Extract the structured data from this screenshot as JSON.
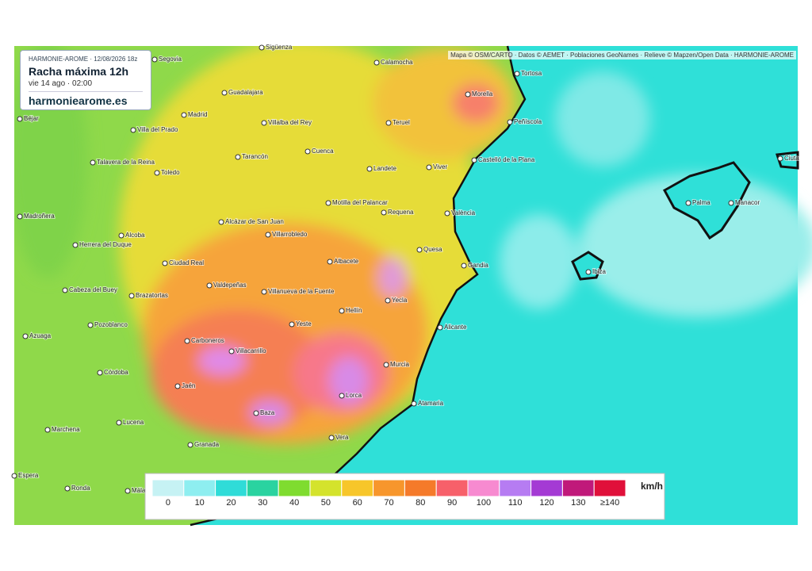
{
  "header": {
    "model": "HARMONIE-AROME · 12/08/2026 18z",
    "title": "Racha máxima 12h",
    "time": "vie 14 ago · 02:00",
    "site": "harmoniearome.es"
  },
  "attribution": "Mapa © OSM/CARTO · Datos © AEMET · Poblaciones GeoNames · Relieve © Mapzen/Open Data · HARMONIE-AROME",
  "cities": [
    "Sigüenza",
    "Segovia",
    "Calamocha",
    "Tortosa",
    "Guadalajara",
    "Morella",
    "Béjar",
    "Madrid",
    "Villalba del Rey",
    "Teruel",
    "Peñíscola",
    "Villa del Prado",
    "Cuenca",
    "Talavera de la Reina",
    "Tarancón",
    "Castelló de la Plana",
    "Toledo",
    "Landete",
    "Viver",
    "Ciuta",
    "Palma",
    "Manacor",
    "Madroñera",
    "Motilla del Palancar",
    "Requena",
    "València",
    "Alcázar de San Juan",
    "Alcoba",
    "Herrera del Duque",
    "Villarrobledo",
    "Quesa",
    "Ciudad Real",
    "Albacete",
    "Gandia",
    "Ibiza",
    "Valdepeñas",
    "Villanueva de la Fuente",
    "Cabeza del Buey",
    "Brazatortas",
    "Yecla",
    "Hellín",
    "Pozoblanco",
    "Yeste",
    "Alicante",
    "Azuaga",
    "Carboneros",
    "Villacarrillo",
    "Córdoba",
    "Murcia",
    "Jaén",
    "Lorca",
    "Atamaria",
    "Baza",
    "Marchena",
    "Lucena",
    "Granada",
    "Vera",
    "Espera",
    "Ronda",
    "Málag"
  ],
  "legend": {
    "unit": "km/h",
    "items": [
      {
        "label": "0",
        "color": "#c6f2f4"
      },
      {
        "label": "10",
        "color": "#8eeef0"
      },
      {
        "label": "20",
        "color": "#2fdcd8"
      },
      {
        "label": "30",
        "color": "#2ad3a0"
      },
      {
        "label": "40",
        "color": "#7fdc2f"
      },
      {
        "label": "50",
        "color": "#d4e32c"
      },
      {
        "label": "60",
        "color": "#f7c62a"
      },
      {
        "label": "70",
        "color": "#f7962c"
      },
      {
        "label": "80",
        "color": "#f57a2a"
      },
      {
        "label": "90",
        "color": "#f7606a"
      },
      {
        "label": "100",
        "color": "#f78ad0"
      },
      {
        "label": "110",
        "color": "#b67cf2"
      },
      {
        "label": "120",
        "color": "#a43ad4"
      },
      {
        "label": "130",
        "color": "#c0197a"
      },
      {
        "label": "≥140",
        "color": "#e0103a"
      }
    ]
  }
}
